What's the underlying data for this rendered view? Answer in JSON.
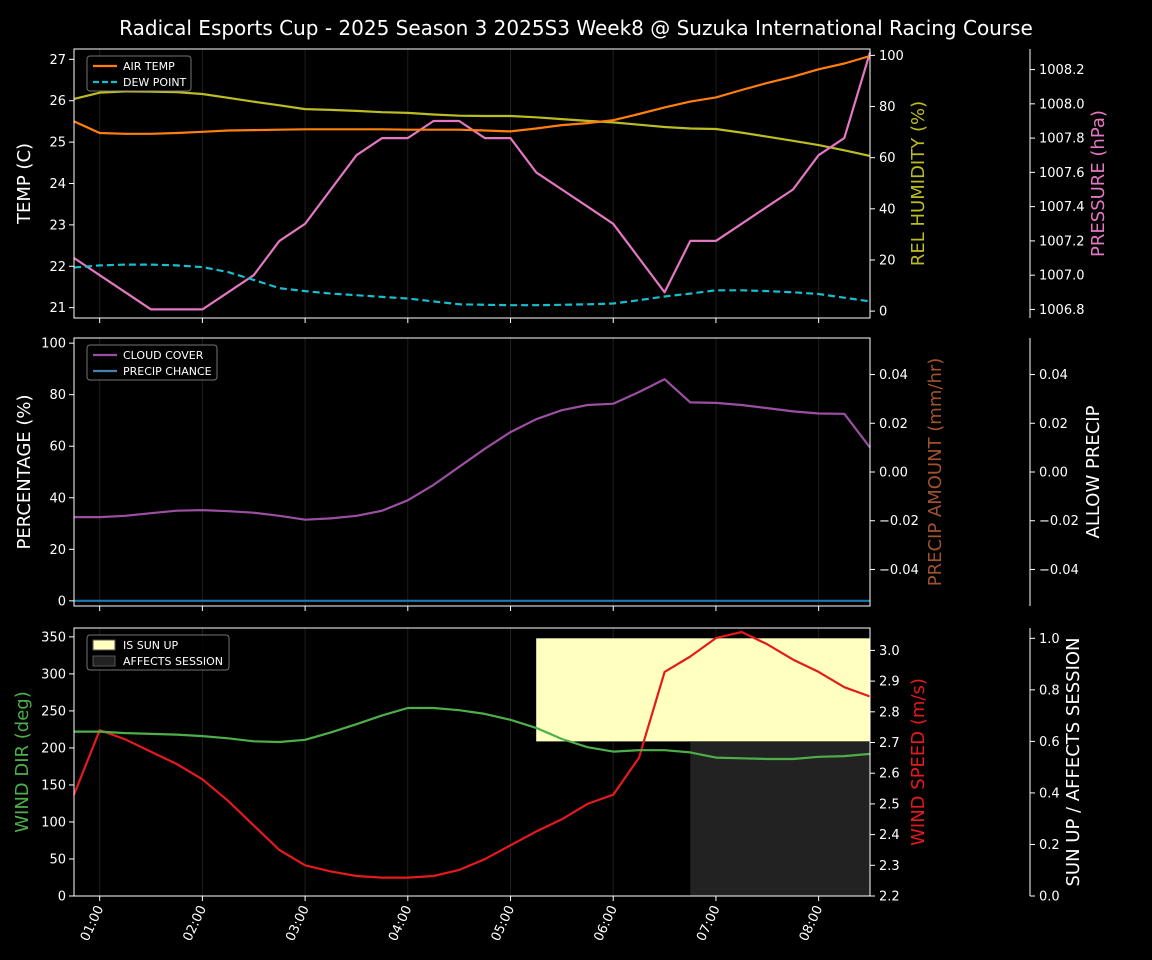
{
  "title": "Radical Esports Cup - 2025 Season 3 2025S3 Week8 @ Suzuka International Racing Course",
  "x_ticks": [
    "01:00",
    "02:00",
    "03:00",
    "04:00",
    "05:00",
    "06:00",
    "07:00",
    "08:00"
  ],
  "colors": {
    "air_temp": "#ff7f0e",
    "dew_point": "#17becf",
    "humidity": "#bcbd22",
    "pressure": "#e377c2",
    "cloud": "#9b4fa3",
    "precip": "#1f77b4",
    "wind_dir": "#4daf4a",
    "wind_speed": "#e41a1c",
    "sun": "#ffffc0",
    "affects": "#222222"
  },
  "chart_data": [
    {
      "type": "line",
      "name": "temperature-panel",
      "x": [
        0.75,
        1.0,
        1.25,
        1.5,
        1.75,
        2.0,
        2.25,
        2.5,
        2.75,
        3.0,
        3.25,
        3.5,
        3.75,
        4.0,
        4.25,
        4.5,
        4.75,
        5.0,
        5.25,
        5.5,
        5.75,
        6.0,
        6.25,
        6.5,
        6.75,
        7.0,
        7.25,
        7.5,
        7.75,
        8.0,
        8.25,
        8.5
      ],
      "xlim": [
        0.75,
        8.5
      ],
      "ylabel": "TEMP (C)",
      "ylim": [
        20.75,
        27.25
      ],
      "yticks": [
        21,
        22,
        23,
        24,
        25,
        26,
        27
      ],
      "series": [
        {
          "name": "AIR TEMP",
          "axis": "left",
          "values": [
            25.5,
            25.22,
            25.2,
            25.2,
            25.22,
            25.25,
            25.28,
            25.29,
            25.3,
            25.31,
            25.31,
            25.31,
            25.31,
            25.3,
            25.3,
            25.3,
            25.28,
            25.26,
            25.33,
            25.41,
            25.46,
            25.53,
            25.68,
            25.84,
            25.98,
            26.08,
            26.26,
            26.43,
            26.58,
            26.76,
            26.9,
            27.08
          ]
        },
        {
          "name": "DEW POINT",
          "axis": "left",
          "dashed": true,
          "values": [
            21.97,
            22.02,
            22.04,
            22.04,
            22.02,
            21.98,
            21.86,
            21.67,
            21.47,
            21.4,
            21.34,
            21.3,
            21.26,
            21.22,
            21.15,
            21.08,
            21.07,
            21.06,
            21.06,
            21.07,
            21.08,
            21.1,
            21.18,
            21.27,
            21.34,
            21.42,
            21.42,
            21.4,
            21.37,
            21.33,
            21.24,
            21.15
          ]
        }
      ],
      "right_axes": [
        {
          "label": "REL HUMIDITY (%)",
          "ylim": [
            -2.7,
            102.5
          ],
          "yticks": [
            0,
            20,
            40,
            60,
            80,
            100
          ],
          "series": [
            {
              "name": "REL HUMIDITY",
              "values": [
                83.0,
                85.4,
                85.9,
                85.8,
                85.6,
                84.9,
                83.4,
                81.9,
                80.5,
                79.0,
                78.7,
                78.3,
                77.8,
                77.5,
                76.9,
                76.4,
                76.3,
                76.3,
                75.8,
                75.1,
                74.4,
                73.8,
                72.9,
                72.0,
                71.4,
                71.2,
                69.8,
                68.2,
                66.6,
                64.9,
                62.9,
                60.7
              ]
            }
          ]
        },
        {
          "label": "PRESSURE (hPa)",
          "ylim": [
            1006.75,
            1008.32
          ],
          "yticks": [
            1006.8,
            1007.0,
            1007.2,
            1007.4,
            1007.6,
            1007.8,
            1008.0,
            1008.2
          ],
          "series": [
            {
              "name": "PRESSURE",
              "values": [
                1007.1,
                1007.0,
                1006.9,
                1006.8,
                1006.8,
                1006.8,
                1006.9,
                1007.0,
                1007.2,
                1007.3,
                1007.5,
                1007.7,
                1007.8,
                1007.8,
                1007.9,
                1007.9,
                1007.8,
                1007.8,
                1007.6,
                1007.5,
                1007.4,
                1007.3,
                1007.1,
                1006.9,
                1007.2,
                1007.2,
                1007.3,
                1007.4,
                1007.5,
                1007.7,
                1007.8,
                1008.3
              ]
            }
          ]
        }
      ]
    },
    {
      "type": "line",
      "name": "cloud-panel",
      "x": [
        0.75,
        1.0,
        1.25,
        1.5,
        1.75,
        2.0,
        2.25,
        2.5,
        2.75,
        3.0,
        3.25,
        3.5,
        3.75,
        4.0,
        4.25,
        4.5,
        4.75,
        5.0,
        5.25,
        5.5,
        5.75,
        6.0,
        6.25,
        6.5,
        6.75,
        7.0,
        7.25,
        7.5,
        7.75,
        8.0,
        8.25,
        8.5
      ],
      "xlim": [
        0.75,
        8.5
      ],
      "ylabel": "PERCENTAGE (%)",
      "ylim": [
        -2,
        102
      ],
      "yticks": [
        0,
        20,
        40,
        60,
        80,
        100
      ],
      "series": [
        {
          "name": "CLOUD COVER",
          "values": [
            32.5,
            32.5,
            33,
            34,
            35,
            35.2,
            34.8,
            34.2,
            33,
            31.5,
            32,
            33,
            35,
            39,
            45,
            52,
            59,
            65.5,
            70.5,
            74,
            76,
            76.5,
            81,
            86,
            77,
            76.8,
            76,
            74.8,
            73.5,
            72.7,
            72.6,
            59.5
          ]
        },
        {
          "name": "PRECIP CHANCE",
          "values": [
            0,
            0,
            0,
            0,
            0,
            0,
            0,
            0,
            0,
            0,
            0,
            0,
            0,
            0,
            0,
            0,
            0,
            0,
            0,
            0,
            0,
            0,
            0,
            0,
            0,
            0,
            0,
            0,
            0,
            0,
            0,
            0
          ]
        }
      ],
      "right_axes": [
        {
          "label": "PRECIP AMOUNT (mm/hr)",
          "ylim": [
            -0.055,
            0.055
          ],
          "yticks": [
            -0.04,
            -0.02,
            0.0,
            0.02,
            0.04
          ]
        },
        {
          "label": "ALLOW PRECIP",
          "ylim": [
            -0.055,
            0.055
          ],
          "yticks": [
            -0.04,
            -0.02,
            0.0,
            0.02,
            0.04
          ]
        }
      ]
    },
    {
      "type": "line",
      "name": "wind-panel",
      "x": [
        0.75,
        1.0,
        1.25,
        1.5,
        1.75,
        2.0,
        2.25,
        2.5,
        2.75,
        3.0,
        3.25,
        3.5,
        3.75,
        4.0,
        4.25,
        4.5,
        4.75,
        5.0,
        5.25,
        5.5,
        5.75,
        6.0,
        6.25,
        6.5,
        6.75,
        7.0,
        7.25,
        7.5,
        7.75,
        8.0,
        8.25,
        8.5
      ],
      "xlim": [
        0.75,
        8.5
      ],
      "ylabel": "WIND DIR (deg)",
      "ylim": [
        0,
        362
      ],
      "yticks": [
        0,
        50,
        100,
        150,
        200,
        250,
        300,
        350
      ],
      "series": [
        {
          "name": "WIND DIR",
          "values": [
            222,
            222,
            220,
            219,
            218,
            216,
            213,
            209,
            208,
            211,
            221,
            232,
            244,
            254,
            254,
            251,
            246,
            238,
            227,
            212,
            201,
            195,
            197,
            197,
            194,
            187,
            186,
            185,
            185,
            188,
            189,
            192
          ]
        }
      ],
      "areas": [
        {
          "name": "IS SUN UP",
          "x_start": 5.25,
          "x_end": 8.5,
          "value": 1.0
        },
        {
          "name": "AFFECTS SESSION",
          "x_start": 6.75,
          "x_end": 8.5,
          "value": 0.6
        }
      ],
      "right_axes": [
        {
          "label": "WIND SPEED (m/s)",
          "ylim": [
            2.2,
            3.073
          ],
          "yticks": [
            2.2,
            2.3,
            2.4,
            2.5,
            2.6,
            2.7,
            2.8,
            2.9,
            3.0
          ],
          "series": [
            {
              "name": "WIND SPEED",
              "values": [
                2.53,
                2.74,
                2.71,
                2.67,
                2.63,
                2.58,
                2.51,
                2.43,
                2.35,
                2.3,
                2.28,
                2.265,
                2.26,
                2.26,
                2.265,
                2.285,
                2.32,
                2.365,
                2.41,
                2.45,
                2.5,
                2.53,
                2.65,
                2.93,
                2.98,
                3.04,
                3.06,
                3.02,
                2.97,
                2.93,
                2.88,
                2.85
              ]
            }
          ]
        },
        {
          "label": "SUN UP / AFFECTS SESSION",
          "ylim": [
            0,
            1.04
          ],
          "yticks": [
            0.0,
            0.2,
            0.4,
            0.6,
            0.8,
            1.0
          ]
        }
      ],
      "legend": [
        "IS SUN UP",
        "AFFECTS SESSION"
      ]
    }
  ]
}
